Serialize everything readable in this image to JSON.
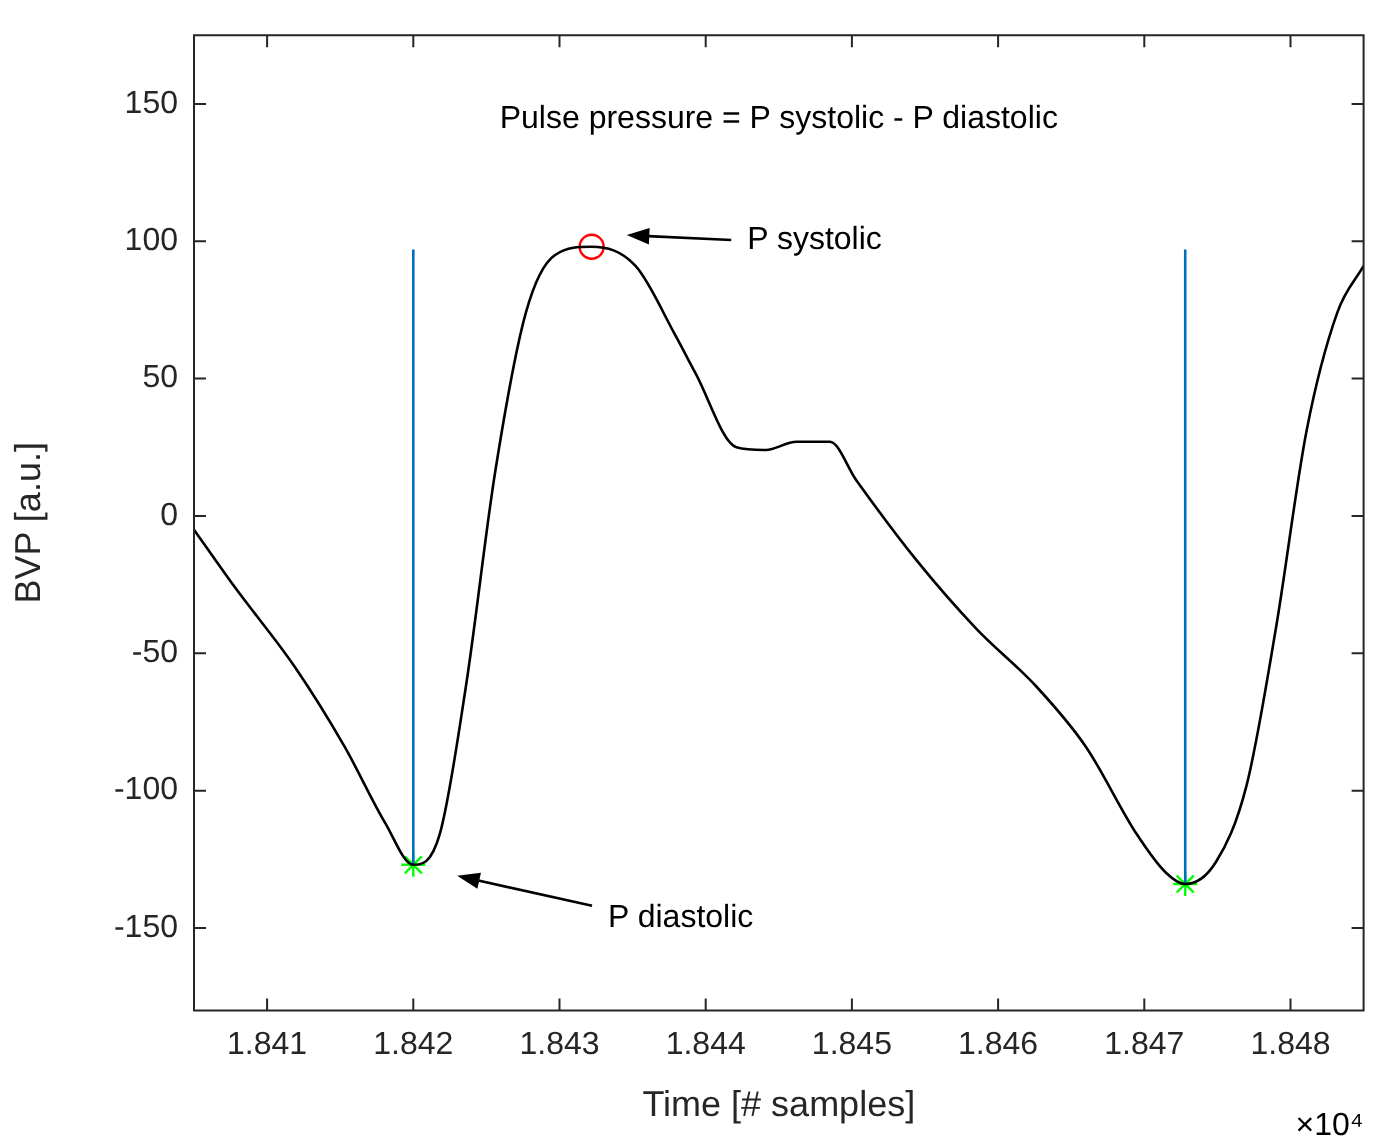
{
  "chart_data": {
    "type": "line",
    "xlabel": "Time [# samples]",
    "ylabel": "BVP [a.u.]",
    "xlim": [
      1.8405,
      1.8485
    ],
    "ylim": [
      -180,
      175
    ],
    "xticks": [
      1.841,
      1.842,
      1.843,
      1.844,
      1.845,
      1.846,
      1.847,
      1.848
    ],
    "yticks": [
      -150,
      -100,
      -50,
      0,
      50,
      100,
      150
    ],
    "grid": false,
    "legend": false,
    "annotations": [
      "Pulse pressure = P systolic - P diastolic",
      "×10⁴",
      "P systolic",
      "P diastolic"
    ],
    "series": [
      {
        "color": "#000000",
        "marker": "none",
        "x": [
          1.8405,
          1.84078,
          1.84119,
          1.84153,
          1.84181,
          1.842,
          1.84218,
          1.84236,
          1.84256,
          1.84277,
          1.84297,
          1.84322,
          1.84352,
          1.84379,
          1.84393,
          1.84421,
          1.84441,
          1.84462,
          1.84485,
          1.84503,
          1.84544,
          1.84585,
          1.84626,
          1.8466,
          1.84695,
          1.84715,
          1.84728,
          1.84749,
          1.8477,
          1.8479,
          1.84811,
          1.84832,
          1.8485
        ],
        "values": [
          -5,
          -26,
          -55,
          -84,
          -112,
          -127,
          -116,
          -62,
          16,
          74,
          95,
          98,
          91,
          66,
          52,
          25,
          24,
          27,
          27,
          13,
          -16,
          -41,
          -62,
          -84,
          -116,
          -130,
          -134,
          -126,
          -98,
          -41,
          31,
          74,
          91
        ]
      },
      {
        "color": "#0072bd",
        "marker": "none",
        "x": [
          1.842,
          1.842
        ],
        "values": [
          -127,
          97
        ]
      },
      {
        "color": "#0072bd",
        "marker": "none",
        "x": [
          1.84728,
          1.84728
        ],
        "values": [
          -134,
          97
        ]
      },
      {
        "type": "scatter",
        "color": "#00ff00",
        "marker": "cross",
        "x": [
          1.842,
          1.84728
        ],
        "values": [
          -127,
          -134
        ]
      },
      {
        "type": "scatter",
        "color": "#ff0000",
        "marker": "circle",
        "x": [
          1.84322
        ],
        "values": [
          98
        ]
      }
    ]
  }
}
